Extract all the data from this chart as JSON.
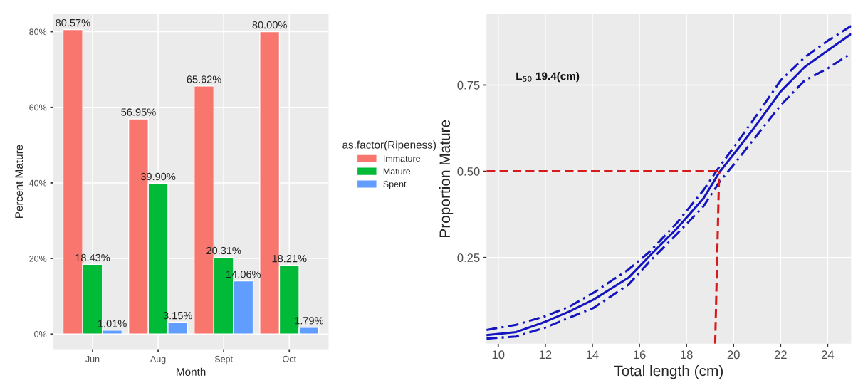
{
  "chart_data": [
    {
      "type": "bar",
      "xlabel": "Month",
      "ylabel": "Percent Mature",
      "legend_title": "as.factor(Ripeness)",
      "legend": "right",
      "grid": true,
      "categories": [
        "Jun",
        "Aug",
        "Sept",
        "Oct"
      ],
      "ylim": [
        -4,
        84.7
      ],
      "yticks": [
        {
          "value": 0,
          "label": "0%"
        },
        {
          "value": 20,
          "label": "20%"
        },
        {
          "value": 40,
          "label": "40%"
        },
        {
          "value": 60,
          "label": "60%"
        },
        {
          "value": 80,
          "label": "80%"
        }
      ],
      "series": [
        {
          "name": "Immature",
          "color": "#f8766d",
          "values": [
            80.57,
            56.95,
            65.62,
            80.0
          ],
          "value_labels": [
            "80.57%",
            "56.95%",
            "65.62%",
            "80.00%"
          ]
        },
        {
          "name": "Mature",
          "color": "#00ba38",
          "values": [
            18.43,
            39.9,
            20.31,
            18.21
          ],
          "value_labels": [
            "18.43%",
            "39.90%",
            "20.31%",
            "18.21%"
          ]
        },
        {
          "name": "Spent",
          "color": "#619cff",
          "values": [
            1.01,
            3.15,
            14.06,
            1.79
          ],
          "value_labels": [
            "1.01%",
            "3.15%",
            "14.06%",
            "1.79%"
          ]
        }
      ]
    },
    {
      "type": "line",
      "xlabel": "Total length (cm)",
      "ylabel": "Proportion Mature",
      "grid": true,
      "annotations": [
        "L$_{50}$ 19.4(cm)"
      ],
      "xlim": [
        9.5,
        25
      ],
      "ylim": [
        0,
        0.956
      ],
      "xticks": [
        10,
        12,
        14,
        16,
        18,
        20,
        22,
        24
      ],
      "yticks": [
        0.25,
        {
          "value": 0.5,
          "label": "0.50"
        },
        0.75
      ],
      "x": [
        9.5,
        10.76,
        12.0,
        13.03,
        14.05,
        15.53,
        16.44,
        17.59,
        18.72,
        19.4,
        20.08,
        20.99,
        22.0,
        23.02,
        24.0,
        25.0
      ],
      "series": [
        {
          "color": "#1515c0",
          "line_style": "solid",
          "values": [
            0.025,
            0.034,
            0.064,
            0.094,
            0.128,
            0.191,
            0.255,
            0.334,
            0.421,
            0.497,
            0.556,
            0.636,
            0.731,
            0.802,
            0.85,
            0.898
          ]
        },
        {
          "color": "#1515c0",
          "line_style": "dashdot",
          "values": [
            0.04,
            0.055,
            0.08,
            0.108,
            0.148,
            0.215,
            0.267,
            0.35,
            0.445,
            0.513,
            0.576,
            0.663,
            0.763,
            0.83,
            0.878,
            0.921
          ]
        },
        {
          "color": "#1515c0",
          "line_style": "dashdot",
          "values": [
            0.015,
            0.021,
            0.047,
            0.076,
            0.104,
            0.171,
            0.239,
            0.318,
            0.398,
            0.469,
            0.525,
            0.604,
            0.691,
            0.763,
            0.798,
            0.842
          ]
        },
        {
          "color": "#d7191c",
          "line_style": "dashed",
          "x": [
            9.5,
            19.4
          ],
          "values": [
            0.5,
            0.5
          ]
        },
        {
          "color": "#d7191c",
          "line_style": "dashed",
          "x": [
            19.22,
            19.39
          ],
          "values": [
            0,
            0.5
          ]
        }
      ]
    }
  ]
}
